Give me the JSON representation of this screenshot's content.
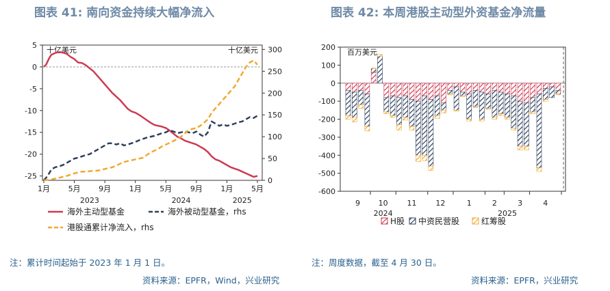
{
  "left_panel": {
    "title": "图表 41: 南向资金持续大幅净流入",
    "note": "注：累计时间起始于 2023 年 1 月 1 日。",
    "source": "资料来源：EPFR，Wind，兴业研究"
  },
  "right_panel": {
    "title": "图表 42: 本周港股主动型外资基金净流量",
    "note": "注：周度数据，截至 4 月 30 日。",
    "source": "资料来源：EPFR，兴业研究"
  },
  "colors": {
    "active": "#cc3b52",
    "passive": "#2e3f5c",
    "southbound": "#f0a830",
    "title": "#6f8aa6",
    "note": "#2a5f8d"
  },
  "chart_data": [
    {
      "type": "line",
      "left_unit": "十亿美元",
      "right_unit": "十亿美元",
      "left_ylim": [
        -26,
        5
      ],
      "left_yticks": [
        5,
        0,
        -5,
        -10,
        -15,
        -20,
        -25
      ],
      "right_ylim": [
        0,
        310
      ],
      "right_yticks": [
        300,
        250,
        200,
        150,
        100,
        50,
        0
      ],
      "x_range": [
        0,
        28
      ],
      "x_ticks": [
        {
          "x": 0,
          "label": "1月"
        },
        {
          "x": 4,
          "label": "5月"
        },
        {
          "x": 8,
          "label": "9月"
        },
        {
          "x": 12,
          "label": "1月"
        },
        {
          "x": 16,
          "label": "5月"
        },
        {
          "x": 20,
          "label": "9月"
        },
        {
          "x": 24,
          "label": "1月"
        },
        {
          "x": 28,
          "label": "5月"
        }
      ],
      "year_labels": [
        {
          "x": 6,
          "label": "2023"
        },
        {
          "x": 18,
          "label": "2024"
        },
        {
          "x": 26,
          "label": "2025"
        }
      ],
      "series": [
        {
          "name": "海外主动型基金",
          "axis": "left",
          "style": "solid",
          "color": "#cc3b52",
          "x": [
            0,
            0.3,
            0.7,
            1,
            1.5,
            2,
            2.5,
            3,
            3.5,
            4,
            4.5,
            5,
            5.5,
            6,
            6.5,
            7,
            7.5,
            8,
            8.5,
            9,
            9.5,
            10,
            10.5,
            11,
            11.5,
            12,
            12.5,
            13,
            13.5,
            14,
            14.5,
            15,
            15.5,
            16,
            16.5,
            17,
            17.5,
            18,
            18.5,
            19,
            19.5,
            20,
            20.5,
            21,
            21.5,
            22,
            22.5,
            23,
            23.5,
            24,
            24.5,
            25,
            25.5,
            26,
            26.5,
            27,
            27.5,
            28
          ],
          "y": [
            0,
            0.5,
            2,
            2.8,
            3.2,
            3.4,
            3.3,
            3.0,
            2.3,
            1.8,
            1.0,
            0.9,
            0.4,
            -0.3,
            -1.0,
            -2.0,
            -3.0,
            -4.0,
            -5.0,
            -6.0,
            -6.8,
            -7.6,
            -8.6,
            -9.6,
            -10.2,
            -10.5,
            -11.0,
            -11.6,
            -12.2,
            -12.8,
            -13.3,
            -13.5,
            -13.7,
            -14.0,
            -14.6,
            -15.3,
            -16.0,
            -16.4,
            -16.9,
            -17.2,
            -17.5,
            -17.8,
            -18.3,
            -18.8,
            -19.5,
            -20.5,
            -21.2,
            -21.5,
            -22.0,
            -22.5,
            -23.0,
            -23.3,
            -23.6,
            -24.0,
            -24.4,
            -24.8,
            -25.2,
            -25.0
          ]
        },
        {
          "name": "海外被动型基金，rhs",
          "axis": "right",
          "style": "dashed",
          "color": "#2e3f5c",
          "x": [
            0,
            0.5,
            1,
            1.5,
            2,
            2.5,
            3,
            3.5,
            4,
            4.5,
            5,
            5.5,
            6,
            6.5,
            7,
            7.5,
            8,
            8.5,
            9,
            9.5,
            10,
            10.5,
            11,
            11.5,
            12,
            12.5,
            13,
            13.5,
            14,
            14.5,
            15,
            15.5,
            16,
            16.5,
            17,
            17.5,
            18,
            18.5,
            19,
            19.5,
            20,
            20.5,
            21,
            21.5,
            22,
            22.5,
            23,
            23.5,
            24,
            24.5,
            25,
            25.5,
            26,
            26.5,
            27,
            27.5,
            28
          ],
          "y": [
            0,
            10,
            25,
            30,
            32,
            35,
            40,
            45,
            50,
            52,
            55,
            58,
            60,
            65,
            70,
            75,
            80,
            85,
            85,
            82,
            85,
            80,
            82,
            85,
            88,
            92,
            95,
            98,
            100,
            102,
            105,
            108,
            110,
            115,
            112,
            108,
            110,
            112,
            110,
            108,
            112,
            105,
            100,
            110,
            135,
            130,
            125,
            128,
            125,
            127,
            130,
            133,
            135,
            140,
            145,
            143,
            148
          ]
        },
        {
          "name": "港股通累计净流入，rhs",
          "axis": "right",
          "style": "dashed",
          "color": "#f0a830",
          "x": [
            0,
            0.5,
            1,
            1.5,
            2,
            2.5,
            3,
            3.5,
            4,
            4.5,
            5,
            5.5,
            6,
            6.5,
            7,
            7.5,
            8,
            8.5,
            9,
            9.5,
            10,
            10.5,
            11,
            11.5,
            12,
            12.5,
            13,
            13.5,
            14,
            14.5,
            15,
            15.5,
            16,
            16.5,
            17,
            17.5,
            18,
            18.5,
            19,
            19.5,
            20,
            20.5,
            21,
            21.5,
            22,
            22.5,
            23,
            23.5,
            24,
            24.5,
            25,
            25.5,
            26,
            26.5,
            27,
            27.5,
            28
          ],
          "y": [
            0,
            1,
            2,
            4,
            6,
            8,
            10,
            13,
            16,
            18,
            20,
            20,
            21,
            22,
            22,
            24,
            26,
            28,
            30,
            34,
            38,
            42,
            44,
            46,
            48,
            50,
            52,
            58,
            64,
            68,
            72,
            78,
            82,
            86,
            90,
            95,
            100,
            108,
            115,
            118,
            120,
            125,
            132,
            140,
            155,
            165,
            175,
            185,
            195,
            205,
            215,
            230,
            245,
            260,
            270,
            275,
            265
          ]
        }
      ],
      "legend": [
        {
          "label": "海外主动型基金",
          "style": "solid",
          "color": "#cc3b52"
        },
        {
          "label": "海外被动型基金，rhs",
          "style": "dashed",
          "color": "#2e3f5c"
        },
        {
          "label": "港股通累计净流入，rhs",
          "style": "dashed",
          "color": "#f0a830"
        }
      ]
    },
    {
      "type": "bar",
      "stacked": true,
      "unit": "百万美元",
      "ylim": [
        -600,
        200
      ],
      "yticks": [
        200,
        100,
        0,
        -100,
        -200,
        -300,
        -400,
        -500,
        -600
      ],
      "month_labels": [
        {
          "week_index": 1.5,
          "label": "9"
        },
        {
          "week_index": 5.5,
          "label": "10"
        },
        {
          "week_index": 10,
          "label": "11"
        },
        {
          "week_index": 14.5,
          "label": "12"
        },
        {
          "week_index": 19,
          "label": "1"
        },
        {
          "week_index": 23,
          "label": "2"
        },
        {
          "week_index": 27,
          "label": "3"
        },
        {
          "week_index": 31,
          "label": "4"
        }
      ],
      "year_labels": [
        {
          "week_index": 5.5,
          "label": "2024"
        },
        {
          "week_index": 25,
          "label": "2025"
        }
      ],
      "divider_after_week": 33,
      "series": [
        {
          "name": "H股",
          "color": "#cc3b52",
          "values": [
            -40,
            -50,
            -40,
            -60,
            60,
            0,
            -80,
            -70,
            -80,
            -70,
            -90,
            -100,
            -70,
            -90,
            -70,
            -110,
            -40,
            -20,
            -50,
            -60,
            -40,
            -50,
            -60,
            -40,
            -50,
            -60,
            -70,
            -100,
            -110,
            -80,
            -60,
            -30,
            -20,
            -40
          ]
        },
        {
          "name": "中资民营股",
          "color": "#2e3f5c",
          "values": [
            -140,
            -140,
            -80,
            -180,
            20,
            150,
            -80,
            -110,
            -150,
            -120,
            -150,
            -300,
            -330,
            -370,
            -110,
            -40,
            -20,
            -130,
            -20,
            -140,
            -90,
            -150,
            -80,
            -150,
            -120,
            -130,
            -180,
            -250,
            -240,
            -80,
            -410,
            -60,
            -60,
            -20
          ]
        },
        {
          "name": "红筹股",
          "color": "#f0a830",
          "values": [
            -20,
            -25,
            -20,
            -25,
            5,
            10,
            -10,
            -10,
            -30,
            -15,
            -20,
            -35,
            -30,
            -25,
            -15,
            -15,
            -5,
            -5,
            -5,
            -10,
            -5,
            -10,
            -5,
            -10,
            -10,
            -10,
            -10,
            -20,
            -20,
            -10,
            -20,
            -10,
            0,
            -5
          ]
        }
      ],
      "legend": [
        {
          "label": "H股",
          "color": "#cc3b52"
        },
        {
          "label": "中资民营股",
          "color": "#2e3f5c"
        },
        {
          "label": "红筹股",
          "color": "#f0a830"
        }
      ]
    }
  ]
}
